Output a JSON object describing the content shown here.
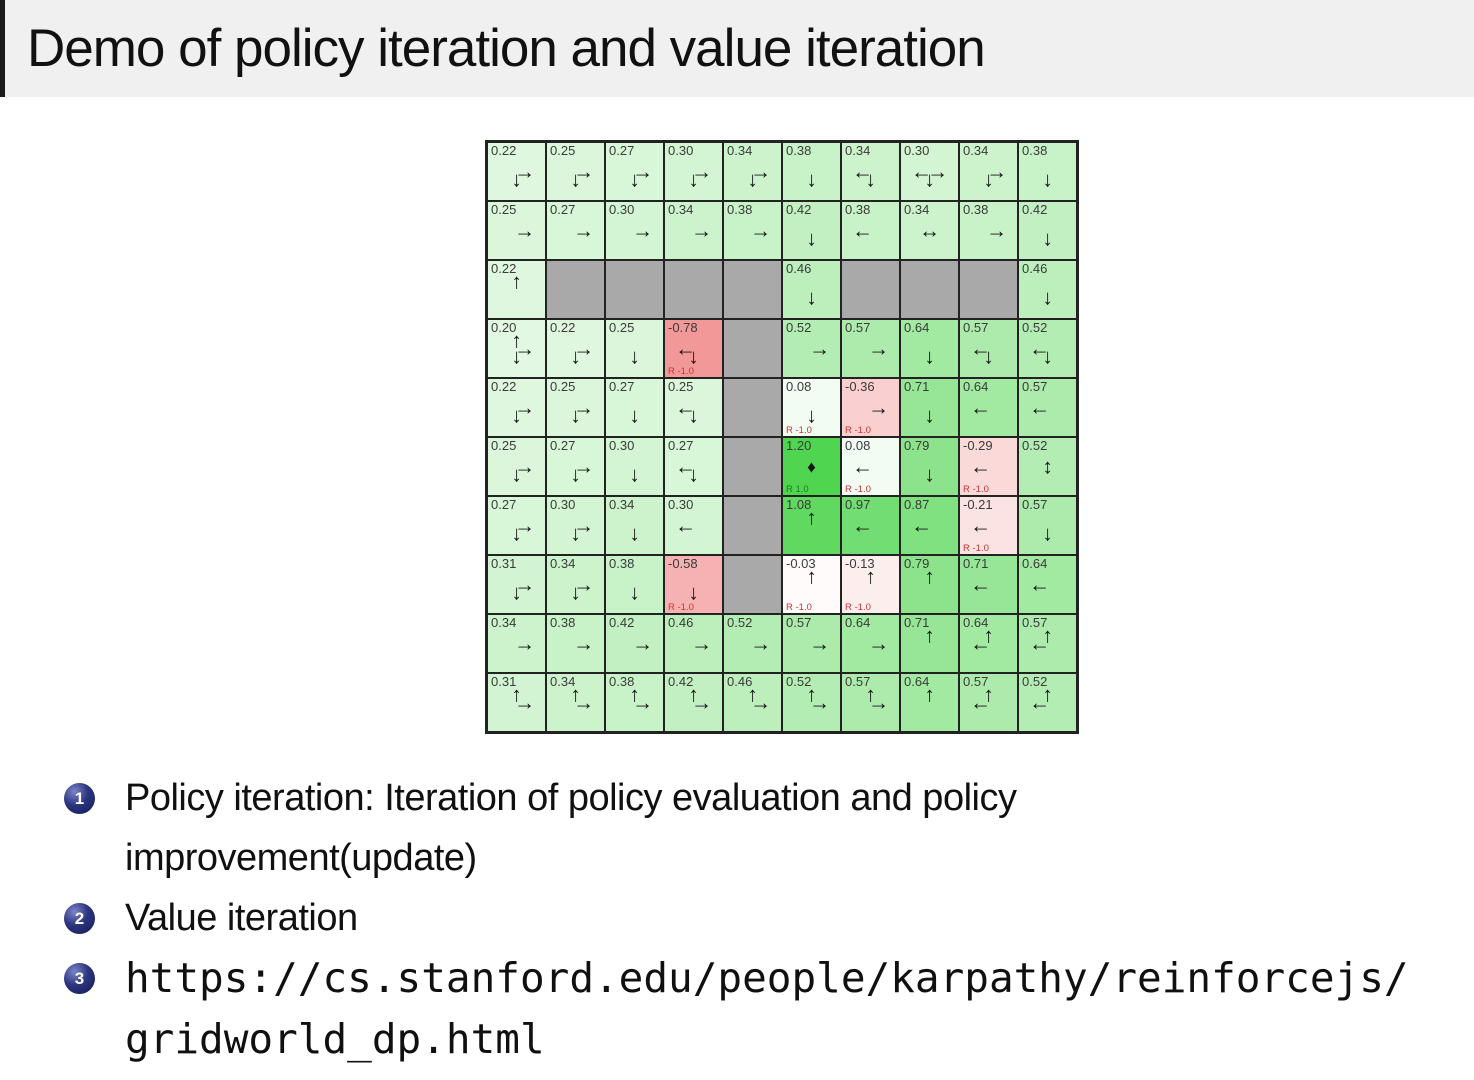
{
  "slide": {
    "title": "Demo of policy iteration and value iteration",
    "bullets": [
      {
        "number": "1",
        "text": "Policy iteration: Iteration of policy evaluation and policy improvement(update)"
      },
      {
        "number": "2",
        "text": "Value iteration"
      },
      {
        "number": "3",
        "text": "https://cs.stanford.edu/people/karpathy/reinforcejs/gridworld_dp.html"
      }
    ]
  },
  "gridworld": {
    "rows": 10,
    "cols": 10,
    "max_abs_value": 1.2,
    "colors": {
      "positive_max": "#50d550",
      "negative_max": "#ec6060",
      "wall": "#a9a9a9",
      "border": "#222222",
      "value_text": "#3a3a3a",
      "reward_negative_text": "#cc3333",
      "reward_positive_text": "#1f7a1f"
    },
    "cells": [
      [
        {
          "v": "0.22",
          "a": [
            "down",
            "right"
          ]
        },
        {
          "v": "0.25",
          "a": [
            "down",
            "right"
          ]
        },
        {
          "v": "0.27",
          "a": [
            "down",
            "right"
          ]
        },
        {
          "v": "0.30",
          "a": [
            "down",
            "right"
          ]
        },
        {
          "v": "0.34",
          "a": [
            "down",
            "right"
          ]
        },
        {
          "v": "0.38",
          "a": [
            "down"
          ]
        },
        {
          "v": "0.34",
          "a": [
            "down",
            "left"
          ]
        },
        {
          "v": "0.30",
          "a": [
            "down",
            "left",
            "right"
          ]
        },
        {
          "v": "0.34",
          "a": [
            "down",
            "right"
          ]
        },
        {
          "v": "0.38",
          "a": [
            "down"
          ]
        }
      ],
      [
        {
          "v": "0.25",
          "a": [
            "right"
          ]
        },
        {
          "v": "0.27",
          "a": [
            "right"
          ]
        },
        {
          "v": "0.30",
          "a": [
            "right"
          ]
        },
        {
          "v": "0.34",
          "a": [
            "right"
          ]
        },
        {
          "v": "0.38",
          "a": [
            "right"
          ]
        },
        {
          "v": "0.42",
          "a": [
            "down"
          ]
        },
        {
          "v": "0.38",
          "a": [
            "left"
          ]
        },
        {
          "v": "0.34",
          "a": [
            "leftright"
          ]
        },
        {
          "v": "0.38",
          "a": [
            "right"
          ]
        },
        {
          "v": "0.42",
          "a": [
            "down"
          ]
        }
      ],
      [
        {
          "v": "0.22",
          "a": [
            "up"
          ]
        },
        {
          "wall": true
        },
        {
          "wall": true
        },
        {
          "wall": true
        },
        {
          "wall": true
        },
        {
          "v": "0.46",
          "a": [
            "down"
          ]
        },
        {
          "wall": true
        },
        {
          "wall": true
        },
        {
          "wall": true
        },
        {
          "v": "0.46",
          "a": [
            "down"
          ]
        }
      ],
      [
        {
          "v": "0.20",
          "a": [
            "right",
            "up",
            "down"
          ]
        },
        {
          "v": "0.22",
          "a": [
            "down",
            "right"
          ]
        },
        {
          "v": "0.25",
          "a": [
            "down"
          ]
        },
        {
          "v": "-0.78",
          "a": [
            "down",
            "left"
          ],
          "r": "R -1.0"
        },
        {
          "wall": true
        },
        {
          "v": "0.52",
          "a": [
            "right"
          ]
        },
        {
          "v": "0.57",
          "a": [
            "right"
          ]
        },
        {
          "v": "0.64",
          "a": [
            "down"
          ]
        },
        {
          "v": "0.57",
          "a": [
            "down",
            "left"
          ]
        },
        {
          "v": "0.52",
          "a": [
            "down",
            "left"
          ]
        }
      ],
      [
        {
          "v": "0.22",
          "a": [
            "down",
            "right"
          ]
        },
        {
          "v": "0.25",
          "a": [
            "down",
            "right"
          ]
        },
        {
          "v": "0.27",
          "a": [
            "down"
          ]
        },
        {
          "v": "0.25",
          "a": [
            "down",
            "left"
          ]
        },
        {
          "wall": true
        },
        {
          "v": "0.08",
          "a": [
            "down"
          ],
          "r": "R -1.0"
        },
        {
          "v": "-0.36",
          "a": [
            "right"
          ],
          "r": "R -1.0"
        },
        {
          "v": "0.71",
          "a": [
            "down"
          ]
        },
        {
          "v": "0.64",
          "a": [
            "left"
          ]
        },
        {
          "v": "0.57",
          "a": [
            "left"
          ]
        }
      ],
      [
        {
          "v": "0.25",
          "a": [
            "down",
            "right"
          ]
        },
        {
          "v": "0.27",
          "a": [
            "down",
            "right"
          ]
        },
        {
          "v": "0.30",
          "a": [
            "down"
          ]
        },
        {
          "v": "0.27",
          "a": [
            "down",
            "left"
          ]
        },
        {
          "wall": true
        },
        {
          "v": "1.20",
          "a": [
            "goal"
          ],
          "r": "R 1.0",
          "goal": true
        },
        {
          "v": "0.08",
          "a": [
            "left"
          ],
          "r": "R -1.0"
        },
        {
          "v": "0.79",
          "a": [
            "down"
          ]
        },
        {
          "v": "-0.29",
          "a": [
            "left"
          ],
          "r": "R -1.0"
        },
        {
          "v": "0.52",
          "a": [
            "updown"
          ]
        }
      ],
      [
        {
          "v": "0.27",
          "a": [
            "down",
            "right"
          ]
        },
        {
          "v": "0.30",
          "a": [
            "down",
            "right"
          ]
        },
        {
          "v": "0.34",
          "a": [
            "down"
          ]
        },
        {
          "v": "0.30",
          "a": [
            "left"
          ]
        },
        {
          "wall": true
        },
        {
          "v": "1.08",
          "a": [
            "up"
          ]
        },
        {
          "v": "0.97",
          "a": [
            "left"
          ]
        },
        {
          "v": "0.87",
          "a": [
            "left"
          ]
        },
        {
          "v": "-0.21",
          "a": [
            "left"
          ],
          "r": "R -1.0"
        },
        {
          "v": "0.57",
          "a": [
            "down"
          ]
        }
      ],
      [
        {
          "v": "0.31",
          "a": [
            "down",
            "right"
          ]
        },
        {
          "v": "0.34",
          "a": [
            "down",
            "right"
          ]
        },
        {
          "v": "0.38",
          "a": [
            "down"
          ]
        },
        {
          "v": "-0.58",
          "a": [
            "down"
          ],
          "r": "R -1.0"
        },
        {
          "wall": true
        },
        {
          "v": "-0.03",
          "a": [
            "up"
          ],
          "r": "R -1.0"
        },
        {
          "v": "-0.13",
          "a": [
            "up"
          ],
          "r": "R -1.0"
        },
        {
          "v": "0.79",
          "a": [
            "up"
          ]
        },
        {
          "v": "0.71",
          "a": [
            "left"
          ]
        },
        {
          "v": "0.64",
          "a": [
            "left"
          ]
        }
      ],
      [
        {
          "v": "0.34",
          "a": [
            "right"
          ]
        },
        {
          "v": "0.38",
          "a": [
            "right"
          ]
        },
        {
          "v": "0.42",
          "a": [
            "right"
          ]
        },
        {
          "v": "0.46",
          "a": [
            "right"
          ]
        },
        {
          "v": "0.52",
          "a": [
            "right"
          ]
        },
        {
          "v": "0.57",
          "a": [
            "right"
          ]
        },
        {
          "v": "0.64",
          "a": [
            "right"
          ]
        },
        {
          "v": "0.71",
          "a": [
            "up"
          ]
        },
        {
          "v": "0.64",
          "a": [
            "up",
            "left"
          ]
        },
        {
          "v": "0.57",
          "a": [
            "up",
            "left"
          ]
        }
      ],
      [
        {
          "v": "0.31",
          "a": [
            "up",
            "right"
          ]
        },
        {
          "v": "0.34",
          "a": [
            "up",
            "right"
          ]
        },
        {
          "v": "0.38",
          "a": [
            "up",
            "right"
          ]
        },
        {
          "v": "0.42",
          "a": [
            "up",
            "right"
          ]
        },
        {
          "v": "0.46",
          "a": [
            "up",
            "right"
          ]
        },
        {
          "v": "0.52",
          "a": [
            "up",
            "right"
          ]
        },
        {
          "v": "0.57",
          "a": [
            "up",
            "right"
          ]
        },
        {
          "v": "0.64",
          "a": [
            "up"
          ]
        },
        {
          "v": "0.57",
          "a": [
            "up",
            "left"
          ]
        },
        {
          "v": "0.52",
          "a": [
            "up",
            "left"
          ]
        }
      ]
    ]
  }
}
